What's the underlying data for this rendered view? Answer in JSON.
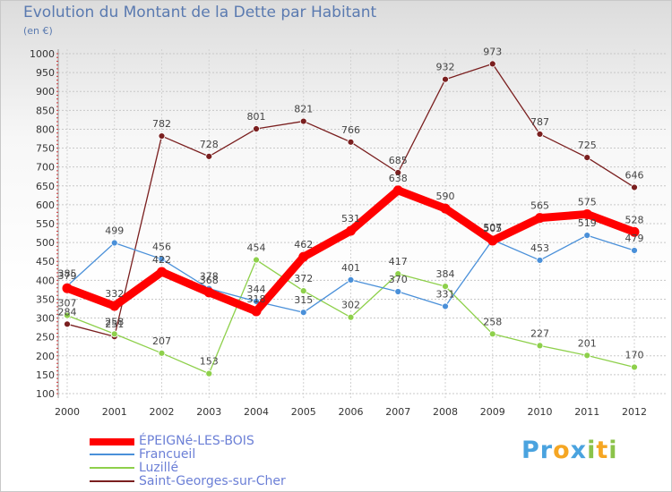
{
  "header": {
    "title": "Evolution du Montant de la Dette par Habitant",
    "unit": "(en €)"
  },
  "logo": {
    "text": "Proxiti"
  },
  "chart_data": {
    "type": "line",
    "title": "Evolution du Montant de la Dette par Habitant",
    "ylabel": "(en €)",
    "xlabel": "",
    "x": [
      "2000",
      "2001",
      "2002",
      "2003",
      "2004",
      "2005",
      "2006",
      "2007",
      "2008",
      "2009",
      "2010",
      "2011",
      "2012"
    ],
    "ylim": [
      100,
      1000
    ],
    "yticks": [
      100,
      150,
      200,
      250,
      300,
      350,
      400,
      450,
      500,
      550,
      600,
      650,
      700,
      750,
      800,
      850,
      900,
      950,
      1000
    ],
    "grid": true,
    "legend_position": "bottom-left",
    "series": [
      {
        "name": "ÉPEIGNé-LES-BOIS",
        "color": "#ff0000",
        "values": [
          379,
          332,
          422,
          368,
          318,
          462,
          531,
          638,
          590,
          505,
          565,
          575,
          528
        ]
      },
      {
        "name": "Francueil",
        "color": "#4a90d9",
        "values": [
          385,
          499,
          456,
          378,
          344,
          315,
          401,
          370,
          331,
          507,
          453,
          519,
          479
        ]
      },
      {
        "name": "Luzillé",
        "color": "#8ed04b",
        "values": [
          307,
          258,
          207,
          153,
          454,
          372,
          302,
          417,
          384,
          258,
          227,
          201,
          170
        ]
      },
      {
        "name": "Saint-Georges-sur-Cher",
        "color": "#7a1f1f",
        "values": [
          284,
          251,
          782,
          728,
          801,
          821,
          766,
          685,
          932,
          973,
          787,
          725,
          646
        ]
      }
    ]
  }
}
